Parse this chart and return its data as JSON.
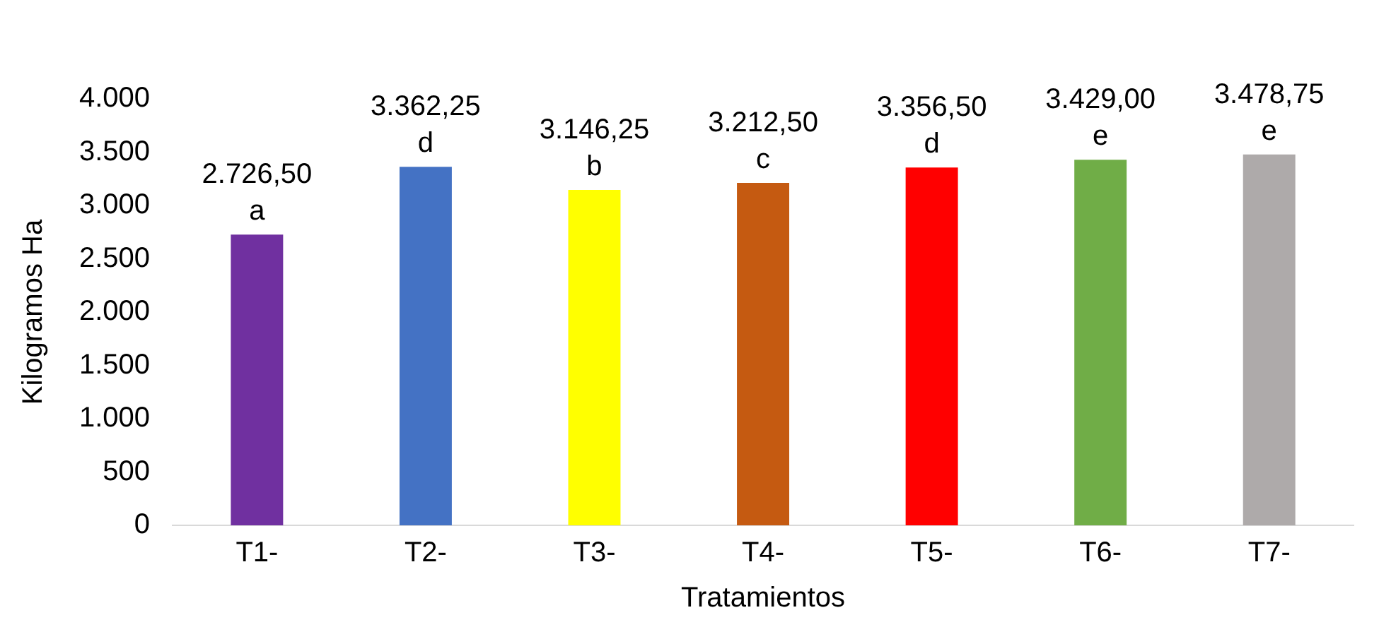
{
  "chart_data": {
    "type": "bar",
    "xlabel": "Tratamientos",
    "ylabel": "Kilogramos Ha",
    "categories": [
      "T1-",
      "T2-",
      "T3-",
      "T4-",
      "T5-",
      "T6-",
      "T7-"
    ],
    "values": [
      2726.5,
      3362.25,
      3146.25,
      3212.5,
      3356.5,
      3429,
      3478.75
    ],
    "colors": [
      "#7030a0",
      "#4472c4",
      "#ffff00",
      "#c55a11",
      "#ff0000",
      "#70ad47",
      "#aeaaaa"
    ],
    "value_labels": [
      "2.726,50",
      "3.362,25",
      "3.146,25",
      "3.212,50",
      "3.356,50",
      "3.429,00",
      "3.478,75"
    ],
    "annotations": [
      {
        "text": "a",
        "x": "T1-",
        "y": 2726.5
      },
      {
        "text": "d",
        "x": "T2-",
        "y": 3362.25
      },
      {
        "text": "b",
        "x": "T3-",
        "y": 3146.25
      },
      {
        "text": "c",
        "x": "T4-",
        "y": 3212.5
      },
      {
        "text": "d",
        "x": "T5-",
        "y": 3356.5
      },
      {
        "text": "e",
        "x": "T6-",
        "y": 3429
      },
      {
        "text": "e",
        "x": "T7-",
        "y": 3478.75
      }
    ],
    "ylim": [
      0,
      4000
    ],
    "yticks": [
      {
        "value": 0,
        "label": "0"
      },
      {
        "value": 500,
        "label": "500"
      },
      {
        "value": 1000,
        "label": "1.000"
      },
      {
        "value": 1500,
        "label": "1.500"
      },
      {
        "value": 2000,
        "label": "2.000"
      },
      {
        "value": 2500,
        "label": "2.500"
      },
      {
        "value": 3000,
        "label": "3.000"
      },
      {
        "value": 3500,
        "label": "3.500"
      },
      {
        "value": 4000,
        "label": "4.000"
      }
    ],
    "grid": false,
    "legend": false
  }
}
